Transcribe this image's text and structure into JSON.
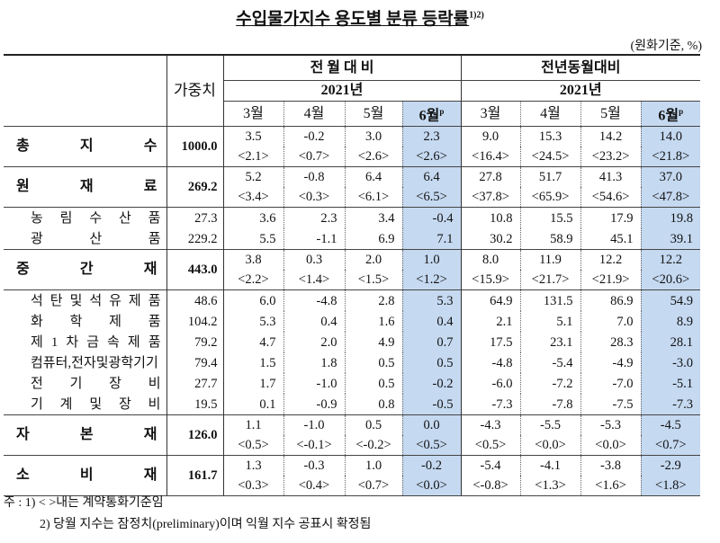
{
  "title": "수입물가지수 용도별 분류 등락률",
  "title_sup": "1)2)",
  "unit": "(원화기준, %)",
  "header": {
    "weight": "가중치",
    "group1": "전 월 대 비",
    "group2": "전년동월대비",
    "year": "2021년",
    "months": [
      "3월",
      "4월",
      "5월",
      "6월"
    ],
    "prelim_mark": "p"
  },
  "rows": [
    {
      "label": "총 지 수",
      "weight": "1000.0",
      "major": true,
      "values": [
        "3.5",
        "-0.2",
        "3.0",
        "2.3",
        "9.0",
        "15.3",
        "14.2",
        "14.0"
      ],
      "contract": [
        "<2.1>",
        "<0.7>",
        "<2.6>",
        "<2.6>",
        "<16.4>",
        "<24.5>",
        "<23.2>",
        "<21.8>"
      ]
    },
    {
      "label": "원 재 료",
      "weight": "269.2",
      "major": true,
      "values": [
        "5.2",
        "-0.8",
        "6.4",
        "6.4",
        "27.8",
        "51.7",
        "41.3",
        "37.0"
      ],
      "contract": [
        "<3.4>",
        "<0.3>",
        "<6.1>",
        "<6.5>",
        "<37.8>",
        "<65.9>",
        "<54.6>",
        "<47.8>"
      ]
    },
    {
      "label": "농 림 수 산 품",
      "weight": "27.3",
      "values": [
        "3.6",
        "2.3",
        "3.4",
        "-0.4",
        "10.8",
        "15.5",
        "17.9",
        "19.8"
      ]
    },
    {
      "label": "광 산 품",
      "weight": "229.2",
      "values": [
        "5.5",
        "-1.1",
        "6.9",
        "7.1",
        "30.2",
        "58.9",
        "45.1",
        "39.1"
      ]
    },
    {
      "label": "중 간 재",
      "weight": "443.0",
      "major": true,
      "values": [
        "3.8",
        "0.3",
        "2.0",
        "1.0",
        "8.0",
        "11.9",
        "12.2",
        "12.2"
      ],
      "contract": [
        "<2.2>",
        "<1.4>",
        "<1.5>",
        "<1.2>",
        "<15.9>",
        "<21.7>",
        "<21.9>",
        "<20.6>"
      ]
    },
    {
      "label": "석 탄 및 석 유 제 품",
      "weight": "48.6",
      "values": [
        "6.0",
        "-4.8",
        "2.8",
        "5.3",
        "64.9",
        "131.5",
        "86.9",
        "54.9"
      ]
    },
    {
      "label": "화 학 제 품",
      "weight": "104.2",
      "values": [
        "5.3",
        "0.4",
        "1.6",
        "0.4",
        "2.1",
        "5.1",
        "7.0",
        "8.9"
      ]
    },
    {
      "label": "제 1 차 금 속 제 품",
      "weight": "79.2",
      "values": [
        "4.7",
        "2.0",
        "4.9",
        "0.7",
        "17.5",
        "23.1",
        "28.3",
        "28.1"
      ]
    },
    {
      "label": "컴퓨터,전자및광학기기",
      "weight": "79.4",
      "values": [
        "1.5",
        "1.8",
        "0.5",
        "0.5",
        "-4.8",
        "-5.4",
        "-4.9",
        "-3.0"
      ]
    },
    {
      "label": "전 기 장 비",
      "weight": "27.7",
      "values": [
        "1.7",
        "-1.0",
        "0.5",
        "-0.2",
        "-6.0",
        "-7.2",
        "-7.0",
        "-5.1"
      ]
    },
    {
      "label": "기 계 및 장 비",
      "weight": "19.5",
      "values": [
        "0.1",
        "-0.9",
        "0.8",
        "-0.5",
        "-7.3",
        "-7.8",
        "-7.5",
        "-7.3"
      ]
    },
    {
      "label": "자 본 재",
      "weight": "126.0",
      "major": true,
      "values": [
        "1.1",
        "-1.0",
        "0.5",
        "0.0",
        "-4.3",
        "-5.5",
        "-5.3",
        "-4.5"
      ],
      "contract": [
        "<0.5>",
        "<-0.1>",
        "<-0.2>",
        "<0.5>",
        "<0.5>",
        "<0.0>",
        "<0.0>",
        "<0.7>"
      ]
    },
    {
      "label": "소 비 재",
      "weight": "161.7",
      "major": true,
      "values": [
        "1.3",
        "-0.3",
        "1.0",
        "-0.2",
        "-5.4",
        "-4.1",
        "-3.8",
        "-2.9"
      ],
      "contract": [
        "<0.3>",
        "<0.4>",
        "<0.7>",
        "<0.0>",
        "<-0.8>",
        "<1.3>",
        "<1.6>",
        "<1.8>"
      ]
    }
  ],
  "notes": [
    "주 : 1) < >내는 계약통화기준임",
    "2) 당월 지수는 잠정치(preliminary)이며 익월 지수 공표시 확정됨"
  ],
  "colors": {
    "highlight": "#c5d9f1"
  }
}
